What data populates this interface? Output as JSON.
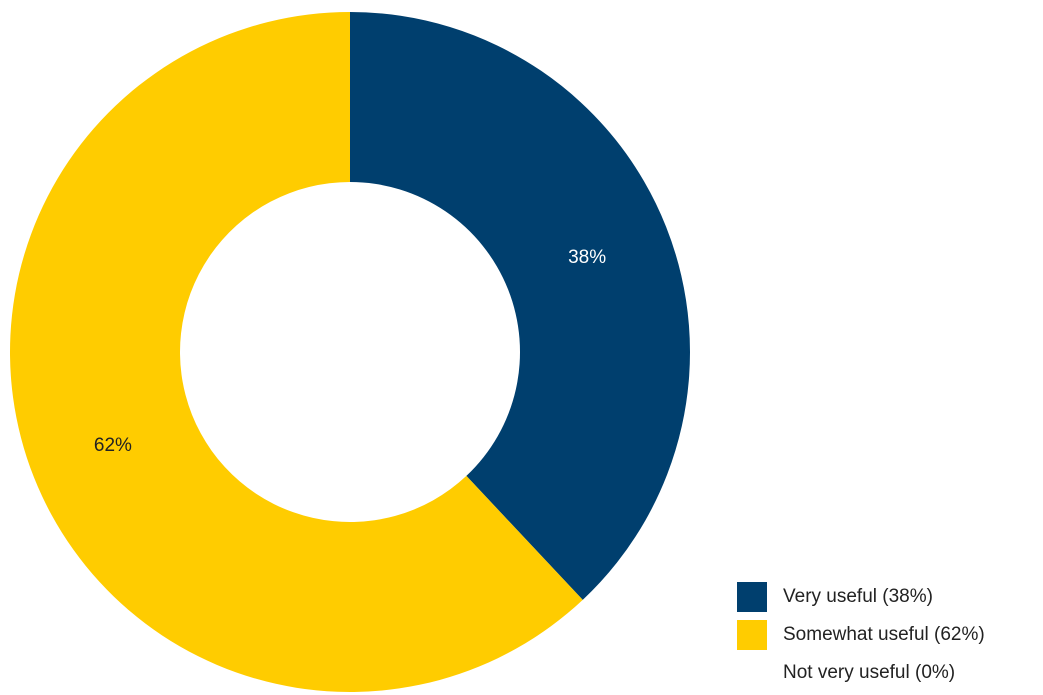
{
  "chart_data": {
    "type": "pie",
    "donut": true,
    "slices": [
      {
        "label": "Very useful",
        "value": 38,
        "display": "38%",
        "legend": "Very useful (38%)",
        "color": "#003f6e",
        "label_color": "#ffffff"
      },
      {
        "label": "Somewhat useful",
        "value": 62,
        "display": "62%",
        "legend": "Somewhat useful (62%)",
        "color": "#ffcc00",
        "label_color": "#222222"
      },
      {
        "label": "Not very useful",
        "value": 0,
        "display": "0%",
        "legend": "Not very useful (0%)",
        "color": "#ffffff",
        "label_color": "#222222"
      }
    ],
    "legend_position": "bottom-right"
  }
}
